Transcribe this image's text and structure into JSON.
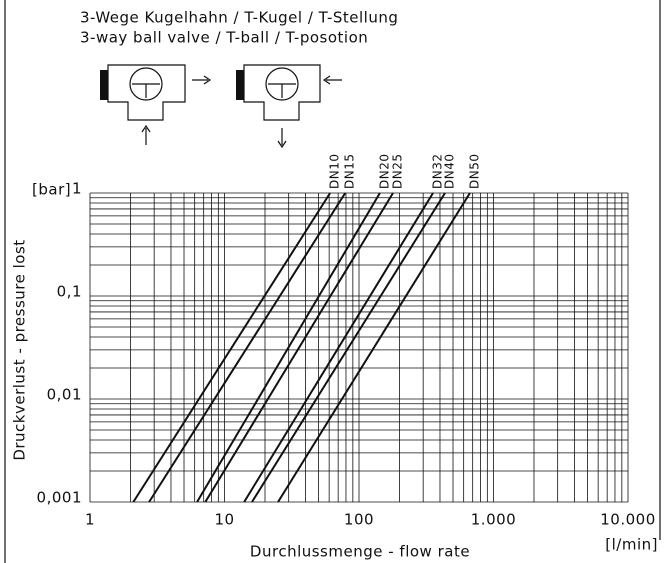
{
  "chart_data": {
    "type": "line",
    "title": [
      "3-Wege Kugelhahn / T-Kugel / T-Stellung",
      "3-way ball valve / T-ball / T-posotion"
    ],
    "xlabel": "Durchlussmenge - flow rate",
    "xunit": "[l/min]",
    "ylabel": "Druckverlust - pressure lost",
    "yunit": "[bar]",
    "xscale": "log",
    "yscale": "log",
    "xlim": [
      1,
      10000
    ],
    "xticks": [
      1,
      10,
      100,
      {
        "value": 1000,
        "label": "1.000"
      },
      {
        "value": 10000,
        "label": "10.000"
      }
    ],
    "ylim": [
      0.001,
      1
    ],
    "yticks": [
      {
        "value": 0.001,
        "label": "0,001"
      },
      {
        "value": 0.01,
        "label": "0,01"
      },
      {
        "value": 0.1,
        "label": "0,1"
      },
      1
    ],
    "grid": true,
    "series": [
      {
        "name": "DN10",
        "color": "#111111",
        "x": [
          2.1,
          61
        ],
        "values": [
          0.001,
          1
        ]
      },
      {
        "name": "DN15",
        "color": "#111111",
        "x": [
          2.75,
          79
        ],
        "values": [
          0.001,
          1
        ]
      },
      {
        "name": "DN20",
        "color": "#111111",
        "x": [
          6.25,
          143
        ],
        "values": [
          0.001,
          1
        ]
      },
      {
        "name": "DN25",
        "color": "#111111",
        "x": [
          7.2,
          179
        ],
        "values": [
          0.001,
          1
        ]
      },
      {
        "name": "DN32",
        "color": "#111111",
        "x": [
          14,
          355
        ],
        "values": [
          0.001,
          1
        ]
      },
      {
        "name": "DN40",
        "color": "#111111",
        "x": [
          16,
          436
        ],
        "values": [
          0.001,
          1
        ]
      },
      {
        "name": "DN50",
        "color": "#111111",
        "x": [
          25,
          668
        ],
        "values": [
          0.001,
          1
        ]
      }
    ]
  }
}
